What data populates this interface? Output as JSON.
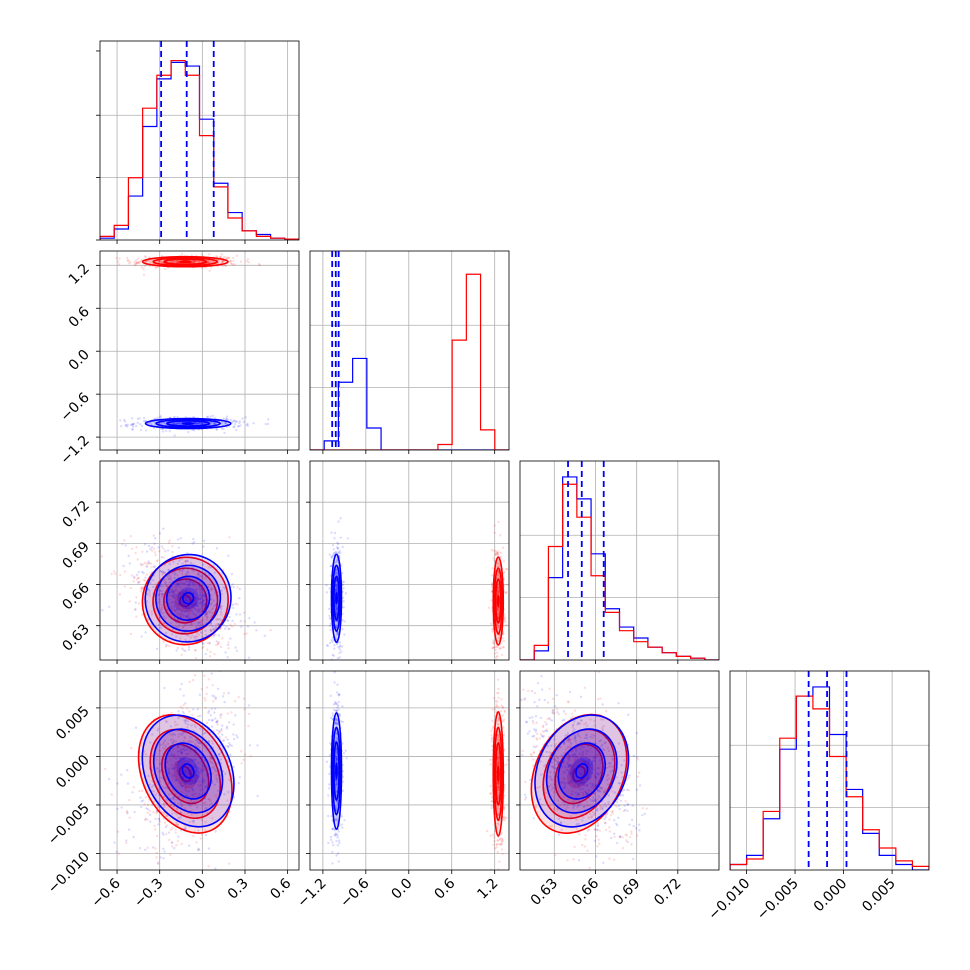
{
  "chart_data": {
    "type": "corner",
    "grid": true,
    "colors": {
      "series_a": "#0000ff",
      "series_b": "#ff0000",
      "grid": "#b0b0b0"
    },
    "parameters": [
      {
        "ticks": [
          -0.6,
          -0.3,
          0.0,
          0.3,
          0.6
        ],
        "tick_labels": [
          "−0.6",
          "−0.3",
          "0.0",
          "0.3",
          "0.6"
        ],
        "range": [
          -0.72,
          0.68
        ]
      },
      {
        "ticks": [
          -1.2,
          -0.6,
          0.0,
          0.6,
          1.2
        ],
        "tick_labels": [
          "−1.2",
          "−0.6",
          "0.0",
          "0.6",
          "1.2"
        ],
        "range": [
          -1.38,
          1.4
        ]
      },
      {
        "ticks": [
          0.63,
          0.66,
          0.69,
          0.72
        ],
        "tick_labels": [
          "0.63",
          "0.66",
          "0.69",
          "0.72"
        ],
        "range": [
          0.605,
          0.75
        ]
      },
      {
        "ticks": [
          -0.01,
          -0.005,
          0.0,
          0.005
        ],
        "tick_labels": [
          "−0.010",
          "−0.005",
          "0.000",
          "0.005"
        ],
        "range": [
          -0.0117,
          0.0088
        ]
      }
    ],
    "quantile_lines_series_a": [
      [
        -0.29,
        -0.11,
        0.08
      ],
      [
        -1.07,
        -1.02,
        -0.98
      ],
      [
        0.64,
        0.65,
        0.666
      ],
      [
        -0.0036,
        -0.0017,
        0.0003
      ]
    ],
    "series": [
      {
        "color": "#0000ff",
        "means": [
          -0.1,
          -1.01,
          0.65,
          -0.0015
        ],
        "sds": [
          0.15,
          0.035,
          0.016,
          0.003
        ],
        "histograms": [
          [
            0.01,
            0.06,
            0.24,
            0.62,
            0.88,
            0.97,
            0.95,
            0.66,
            0.31,
            0.15,
            0.05,
            0.03,
            0.01,
            0.005
          ],
          [
            0.0,
            0.05,
            0.37,
            0.5,
            0.12,
            0.0,
            0.0,
            0.0,
            0.0,
            0.0,
            0.0,
            0.0,
            0.0,
            0.0
          ],
          [
            0.0,
            0.05,
            0.45,
            1.0,
            0.88,
            0.58,
            0.28,
            0.18,
            0.12,
            0.07,
            0.04,
            0.02,
            0.01,
            0.0
          ],
          [
            0.03,
            0.08,
            0.28,
            0.66,
            0.95,
            1.0,
            0.74,
            0.44,
            0.2,
            0.08,
            0.03,
            0.0
          ]
        ]
      },
      {
        "color": "#ff0000",
        "means": [
          -0.12,
          1.25,
          0.648,
          -0.0018
        ],
        "sds": [
          0.15,
          0.035,
          0.016,
          0.0032
        ],
        "histograms": [
          [
            0.02,
            0.08,
            0.34,
            0.72,
            0.9,
            0.98,
            0.9,
            0.57,
            0.29,
            0.12,
            0.05,
            0.02,
            0.01,
            0.005
          ],
          [
            0.0,
            0.0,
            0.0,
            0.0,
            0.0,
            0.0,
            0.0,
            0.0,
            0.0,
            0.03,
            0.6,
            0.96,
            0.11,
            0.0
          ],
          [
            0.0,
            0.08,
            0.62,
            0.96,
            0.78,
            0.46,
            0.26,
            0.16,
            0.1,
            0.07,
            0.04,
            0.02,
            0.01,
            0.0
          ],
          [
            0.03,
            0.06,
            0.32,
            0.72,
            0.95,
            0.88,
            0.62,
            0.4,
            0.22,
            0.12,
            0.05,
            0.02
          ]
        ]
      }
    ]
  }
}
